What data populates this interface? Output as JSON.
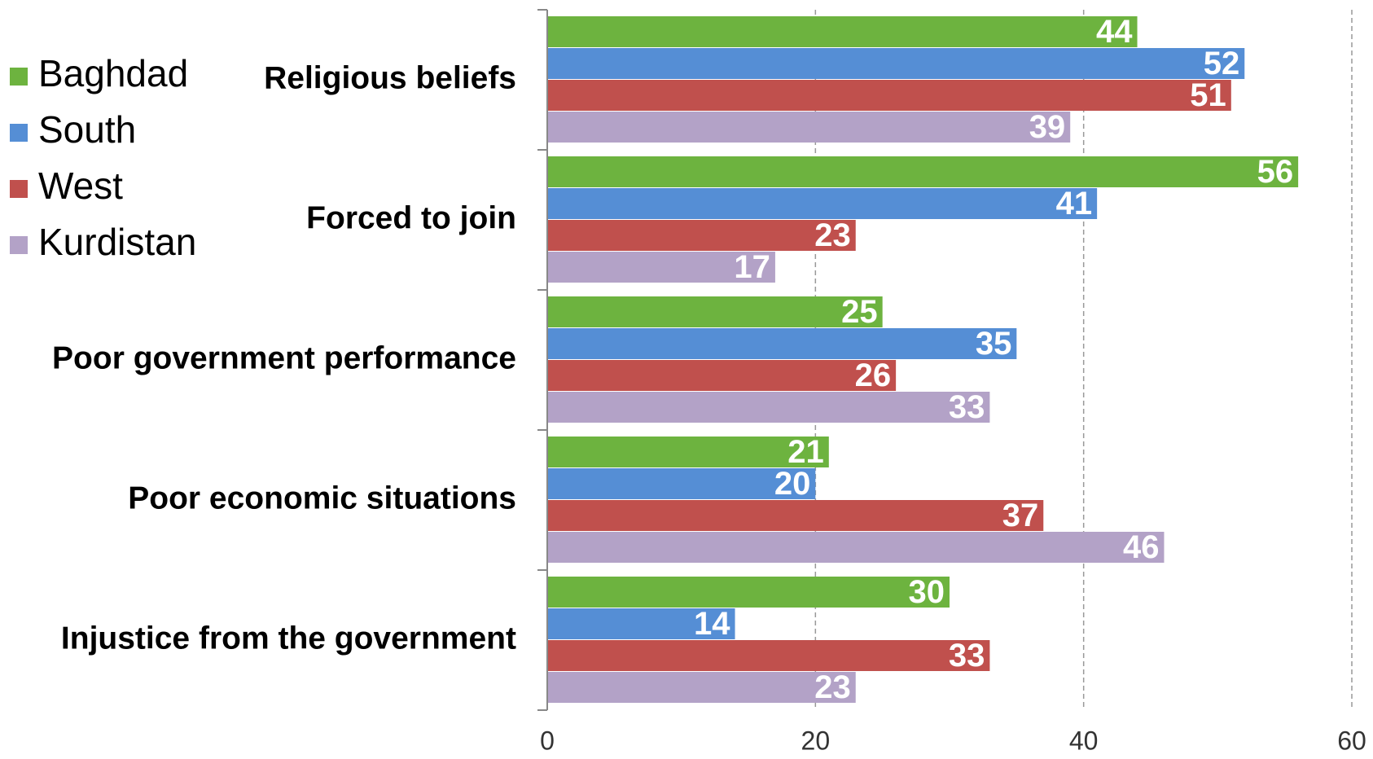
{
  "chart_data": {
    "type": "bar",
    "orientation": "horizontal",
    "categories": [
      "Religious beliefs",
      "Forced to join",
      "Poor government performance",
      "Poor economic situations",
      "Injustice from the government"
    ],
    "series": [
      {
        "name": "Baghdad",
        "color": "#6db33f",
        "values": [
          44,
          56,
          25,
          21,
          30
        ]
      },
      {
        "name": "South",
        "color": "#558ed5",
        "values": [
          52,
          41,
          35,
          20,
          14
        ]
      },
      {
        "name": "West",
        "color": "#c0504d",
        "values": [
          51,
          23,
          26,
          37,
          33
        ]
      },
      {
        "name": "Kurdistan",
        "color": "#b3a2c7",
        "values": [
          39,
          17,
          33,
          46,
          23
        ]
      }
    ],
    "xlim": [
      0,
      60
    ],
    "xticks": [
      0,
      20,
      40,
      60
    ],
    "grid": true,
    "legend": "left"
  }
}
